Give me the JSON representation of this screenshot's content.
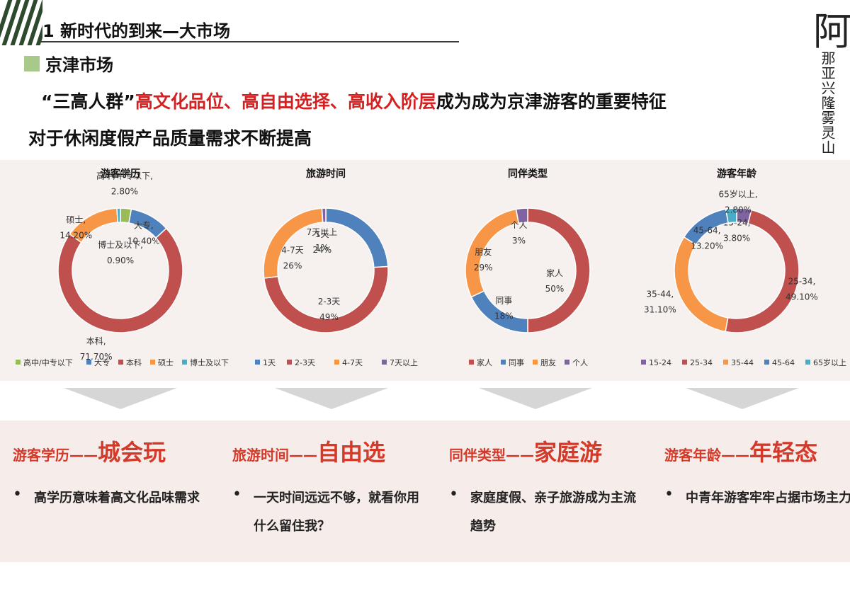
{
  "header": {
    "title": "1 新时代的到来—大市场"
  },
  "brand": {
    "big_char": "阿",
    "vertical_text": "那亚兴隆雾灵山"
  },
  "section": {
    "title": "京津市场"
  },
  "intro": {
    "line1_pre": "“三高人群”",
    "line1_red": "高文化品位、高自由选择、高收入阶层",
    "line1_post": "成为成为京津游客的重要特征",
    "line2": "对于休闲度假产品质量需求不断提高"
  },
  "colors": {
    "red": "#c0504d",
    "blue": "#4f81bd",
    "orange": "#f79646",
    "purple": "#8064a2",
    "green": "#9bbb59",
    "teal": "#4bacc6",
    "accent": "#d43a2a"
  },
  "chart_data": [
    {
      "type": "pie",
      "title": "游客学历",
      "slices": [
        {
          "name": "高中/中专以下",
          "value": 2.8,
          "label": "高中/中专以下, 2.80%",
          "color": "#9bbb59"
        },
        {
          "name": "大专",
          "value": 10.4,
          "label": "大专, 10.40%",
          "color": "#4f81bd"
        },
        {
          "name": "本科",
          "value": 71.7,
          "label": "本科, 71.70%",
          "color": "#c0504d"
        },
        {
          "name": "硕士",
          "value": 14.2,
          "label": "硕士, 14.20%",
          "color": "#f79646"
        },
        {
          "name": "博士及以下",
          "value": 0.9,
          "label": "博士及以下, 0.90%",
          "color": "#4bacc6"
        }
      ],
      "legend": [
        "高中/中专以下",
        "大专",
        "本科",
        "硕士",
        "博士及以下"
      ],
      "legend_position": "bottom"
    },
    {
      "type": "pie",
      "title": "旅游时间",
      "slices": [
        {
          "name": "1天",
          "value": 24,
          "label": "1天 24%",
          "color": "#4f81bd"
        },
        {
          "name": "2-3天",
          "value": 49,
          "label": "2-3天 49%",
          "color": "#c0504d"
        },
        {
          "name": "4-7天",
          "value": 26,
          "label": "4-7天 26%",
          "color": "#f79646"
        },
        {
          "name": "7天以上",
          "value": 1,
          "label": "7天以上 1%",
          "color": "#8064a2"
        }
      ],
      "legend": [
        "1天",
        "2-3天",
        "4-7天",
        "7天以上"
      ],
      "legend_position": "bottom"
    },
    {
      "type": "pie",
      "title": "同伴类型",
      "slices": [
        {
          "name": "家人",
          "value": 50,
          "label": "家人 50%",
          "color": "#c0504d"
        },
        {
          "name": "同事",
          "value": 18,
          "label": "同事 18%",
          "color": "#4f81bd"
        },
        {
          "name": "朋友",
          "value": 29,
          "label": "朋友 29%",
          "color": "#f79646"
        },
        {
          "name": "个人",
          "value": 3,
          "label": "个人 3%",
          "color": "#8064a2"
        }
      ],
      "legend": [
        "家人",
        "同事",
        "朋友",
        "个人"
      ],
      "legend_position": "bottom"
    },
    {
      "type": "pie",
      "title": "游客年龄",
      "slices": [
        {
          "name": "15-24",
          "value": 3.8,
          "label": "15-24, 3.80%",
          "color": "#8064a2"
        },
        {
          "name": "25-34",
          "value": 49.1,
          "label": "25-34, 49.10%",
          "color": "#c0504d"
        },
        {
          "name": "35-44",
          "value": 31.1,
          "label": "35-44, 31.10%",
          "color": "#f79646"
        },
        {
          "name": "45-64",
          "value": 13.2,
          "label": "45-64, 13.20%",
          "color": "#4f81bd"
        },
        {
          "name": "65岁以上",
          "value": 2.8,
          "label": "65岁以上, 2.80%",
          "color": "#4bacc6"
        }
      ],
      "legend": [
        "15-24",
        "25-34",
        "35-44",
        "45-64",
        "65岁以上"
      ],
      "legend_position": "bottom"
    }
  ],
  "columns": [
    {
      "head_small": "游客学历",
      "dash": "——",
      "head_big": "城会玩",
      "bullet": "•",
      "text": "高学历意味着高文化品味需求"
    },
    {
      "head_small": "旅游时间",
      "dash": "——",
      "head_big": "自由选",
      "bullet": "•",
      "text": "一天时间远远不够，就看你用什么留住我？"
    },
    {
      "head_small": "同伴类型",
      "dash": "——",
      "head_big": "家庭游",
      "bullet": "•",
      "text": "家庭度假、亲子旅游成为主流趋势"
    },
    {
      "head_small": "游客年龄",
      "dash": "——",
      "head_big": "年轻态",
      "bullet": "•",
      "text": "中青年游客牢牢占据市场主力"
    }
  ]
}
